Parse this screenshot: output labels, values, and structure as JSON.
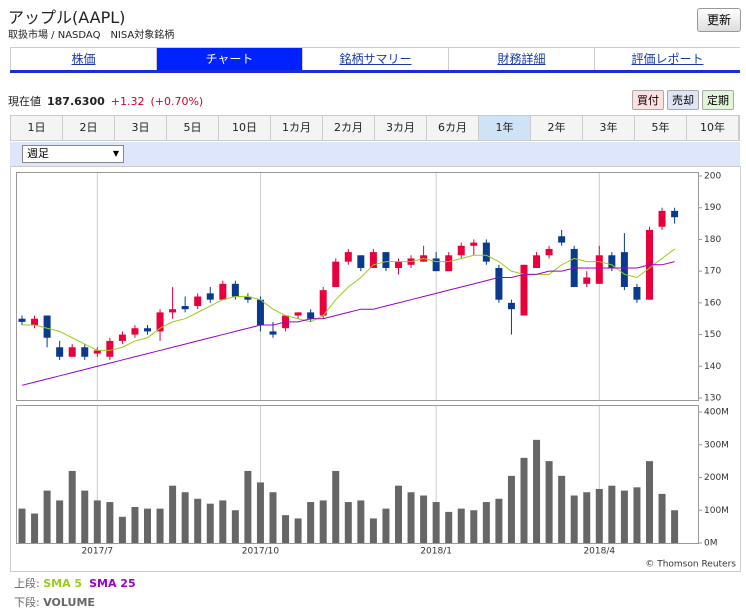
{
  "header": {
    "title": "アップル(AAPL)",
    "subtitle": "取扱市場 / NASDAQ　NISA対象銘柄",
    "refresh": "更新"
  },
  "tabs": [
    "株価",
    "チャート",
    "銘柄サマリー",
    "財務詳細",
    "評価レポート"
  ],
  "active_tab": 1,
  "quote": {
    "label": "現在値",
    "price": "187.6300",
    "change": "+1.32",
    "change_pct": "(+0.70%)"
  },
  "actions": [
    "買付",
    "売却",
    "定期"
  ],
  "periods": [
    "1日",
    "2日",
    "3日",
    "5日",
    "10日",
    "1カ月",
    "2カ月",
    "3カ月",
    "6カ月",
    "1年",
    "2年",
    "3年",
    "5年",
    "10年"
  ],
  "active_period": 9,
  "interval": "週足",
  "chart_data": [
    {
      "type": "candlestick",
      "categories": [
        null,
        null,
        null,
        null,
        null,
        null,
        "2017/7",
        null,
        null,
        null,
        null,
        null,
        null,
        null,
        null,
        null,
        null,
        null,
        null,
        "2017/10",
        null,
        null,
        null,
        null,
        null,
        null,
        null,
        null,
        null,
        null,
        null,
        null,
        null,
        "2018/1",
        null,
        null,
        null,
        null,
        null,
        null,
        null,
        null,
        null,
        null,
        null,
        null,
        "2018/4",
        null,
        null,
        null,
        null,
        null,
        null
      ],
      "open": [
        155,
        153,
        156,
        146,
        143,
        146,
        144,
        143,
        148,
        150,
        152,
        151,
        157,
        159,
        159,
        163,
        161,
        166,
        162,
        161,
        151,
        152,
        156,
        157,
        156,
        165,
        173,
        175,
        171,
        176,
        171,
        172,
        173,
        174,
        170,
        175,
        178,
        179,
        171,
        160,
        156,
        171,
        175,
        181,
        177,
        166,
        166,
        175,
        176,
        165,
        161,
        184,
        189
      ],
      "high": [
        156,
        156,
        156,
        148,
        147,
        147,
        146,
        149,
        151,
        153,
        153,
        158,
        165,
        162,
        163,
        165,
        167,
        167,
        163,
        162,
        154,
        156,
        157,
        158,
        165,
        174,
        177,
        175,
        177,
        176,
        174,
        175,
        178,
        176,
        176,
        179,
        180,
        180,
        172,
        161,
        172,
        176,
        178,
        183,
        178,
        170,
        178,
        176,
        182,
        166,
        184,
        190,
        190
      ],
      "low": [
        153,
        152,
        146,
        142,
        143,
        142,
        143,
        142,
        147,
        149,
        150,
        148,
        155,
        157,
        158,
        160,
        161,
        161,
        160,
        151,
        149,
        151,
        155,
        154,
        155,
        165,
        172,
        170,
        171,
        170,
        169,
        171,
        173,
        170,
        170,
        174,
        175,
        172,
        160,
        150,
        156,
        171,
        174,
        178,
        165,
        165,
        166,
        170,
        164,
        160,
        161,
        183,
        185
      ],
      "close": [
        154,
        155,
        149,
        143,
        146,
        143,
        145,
        148,
        150,
        152,
        151,
        157,
        158,
        158,
        162,
        161,
        166,
        162,
        161,
        153,
        150,
        156,
        157,
        155,
        164,
        173,
        176,
        171,
        176,
        171,
        173,
        174,
        175,
        170,
        175,
        178,
        179,
        173,
        161,
        158,
        172,
        175,
        177,
        179,
        165,
        168,
        175,
        171,
        165,
        161,
        183,
        189,
        187
      ],
      "up_color": "#e8003c",
      "down_color": "#0a3a8c",
      "series": [
        {
          "name": "SMA 5",
          "label": "上段:",
          "color": "#9acd1a",
          "values": [
            153,
            153,
            152,
            151,
            149,
            147,
            145,
            145,
            146,
            148,
            149,
            152,
            154,
            155,
            157,
            159,
            161,
            162,
            162,
            161,
            158,
            156,
            155,
            154,
            156,
            161,
            165,
            168,
            172,
            173,
            173,
            173,
            174,
            173,
            173,
            174,
            175,
            175,
            173,
            170,
            169,
            169,
            169,
            172,
            174,
            173,
            173,
            172,
            169,
            168,
            171,
            174,
            177
          ]
        },
        {
          "name": "SMA 25",
          "color": "#9900cc",
          "values": [
            134,
            135,
            136,
            137,
            138,
            139,
            140,
            141,
            142,
            143,
            144,
            145,
            146,
            147,
            148,
            149,
            150,
            151,
            152,
            153,
            153,
            154,
            154,
            155,
            155,
            156,
            157,
            158,
            158,
            159,
            160,
            161,
            162,
            163,
            164,
            165,
            166,
            167,
            168,
            168,
            169,
            169,
            170,
            170,
            171,
            171,
            171,
            171,
            171,
            171,
            172,
            172,
            173
          ]
        }
      ],
      "ylim": [
        130,
        200
      ],
      "yticks": [
        130,
        140,
        150,
        160,
        170,
        180,
        190,
        200
      ]
    },
    {
      "type": "bar",
      "name": "VOLUME",
      "label": "下段:",
      "color": "#666666",
      "values": [
        105,
        90,
        160,
        130,
        220,
        160,
        130,
        125,
        80,
        110,
        105,
        105,
        175,
        155,
        135,
        120,
        130,
        100,
        220,
        185,
        155,
        85,
        75,
        125,
        130,
        220,
        125,
        130,
        75,
        105,
        175,
        155,
        145,
        125,
        95,
        105,
        100,
        125,
        135,
        205,
        260,
        315,
        250,
        205,
        145,
        155,
        165,
        175,
        160,
        170,
        250,
        150,
        100
      ],
      "ylim": [
        0,
        400
      ],
      "yticks": [
        {
          "value": 0,
          "label": "0M"
        },
        {
          "value": 100,
          "label": "100M"
        },
        {
          "value": 200,
          "label": "200M"
        },
        {
          "value": 300,
          "label": "300M"
        },
        {
          "value": 400,
          "label": "400M"
        }
      ]
    }
  ],
  "copyright": "© Thomson Reuters"
}
